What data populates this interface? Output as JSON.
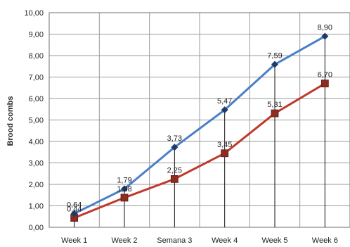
{
  "chart_data": {
    "type": "line",
    "categories": [
      "Week 1",
      "Week 2",
      "Semana 3",
      "Week 4",
      "Week 5",
      "Week 6"
    ],
    "series": [
      {
        "values": [
          0.64,
          1.79,
          3.73,
          5.47,
          7.59,
          8.9
        ],
        "labels": [
          "0,64",
          "1,79",
          "3,73",
          "5,47",
          "7,59",
          "8,90"
        ],
        "color": "#4a7fc8",
        "marker": "diamond",
        "marker_color": "#1f3a66"
      },
      {
        "values": [
          0.44,
          1.38,
          2.25,
          3.45,
          5.31,
          6.7
        ],
        "labels": [
          "0,44",
          "1,38",
          "2,25",
          "3,45",
          "5,31",
          "6,70"
        ],
        "color": "#c0392b",
        "marker": "square",
        "marker_color": "#8e2b22"
      }
    ],
    "ylabel": "Brood combs",
    "ylim": [
      0,
      10
    ],
    "yticks": [
      0,
      1,
      2,
      3,
      4,
      5,
      6,
      7,
      8,
      9,
      10
    ],
    "ytick_labels": [
      "0,00",
      "1,00",
      "2,00",
      "3,00",
      "4,00",
      "5,00",
      "6,00",
      "7,00",
      "8,00",
      "9,00",
      "10,00"
    ],
    "grid": true,
    "drop_lines": true
  }
}
